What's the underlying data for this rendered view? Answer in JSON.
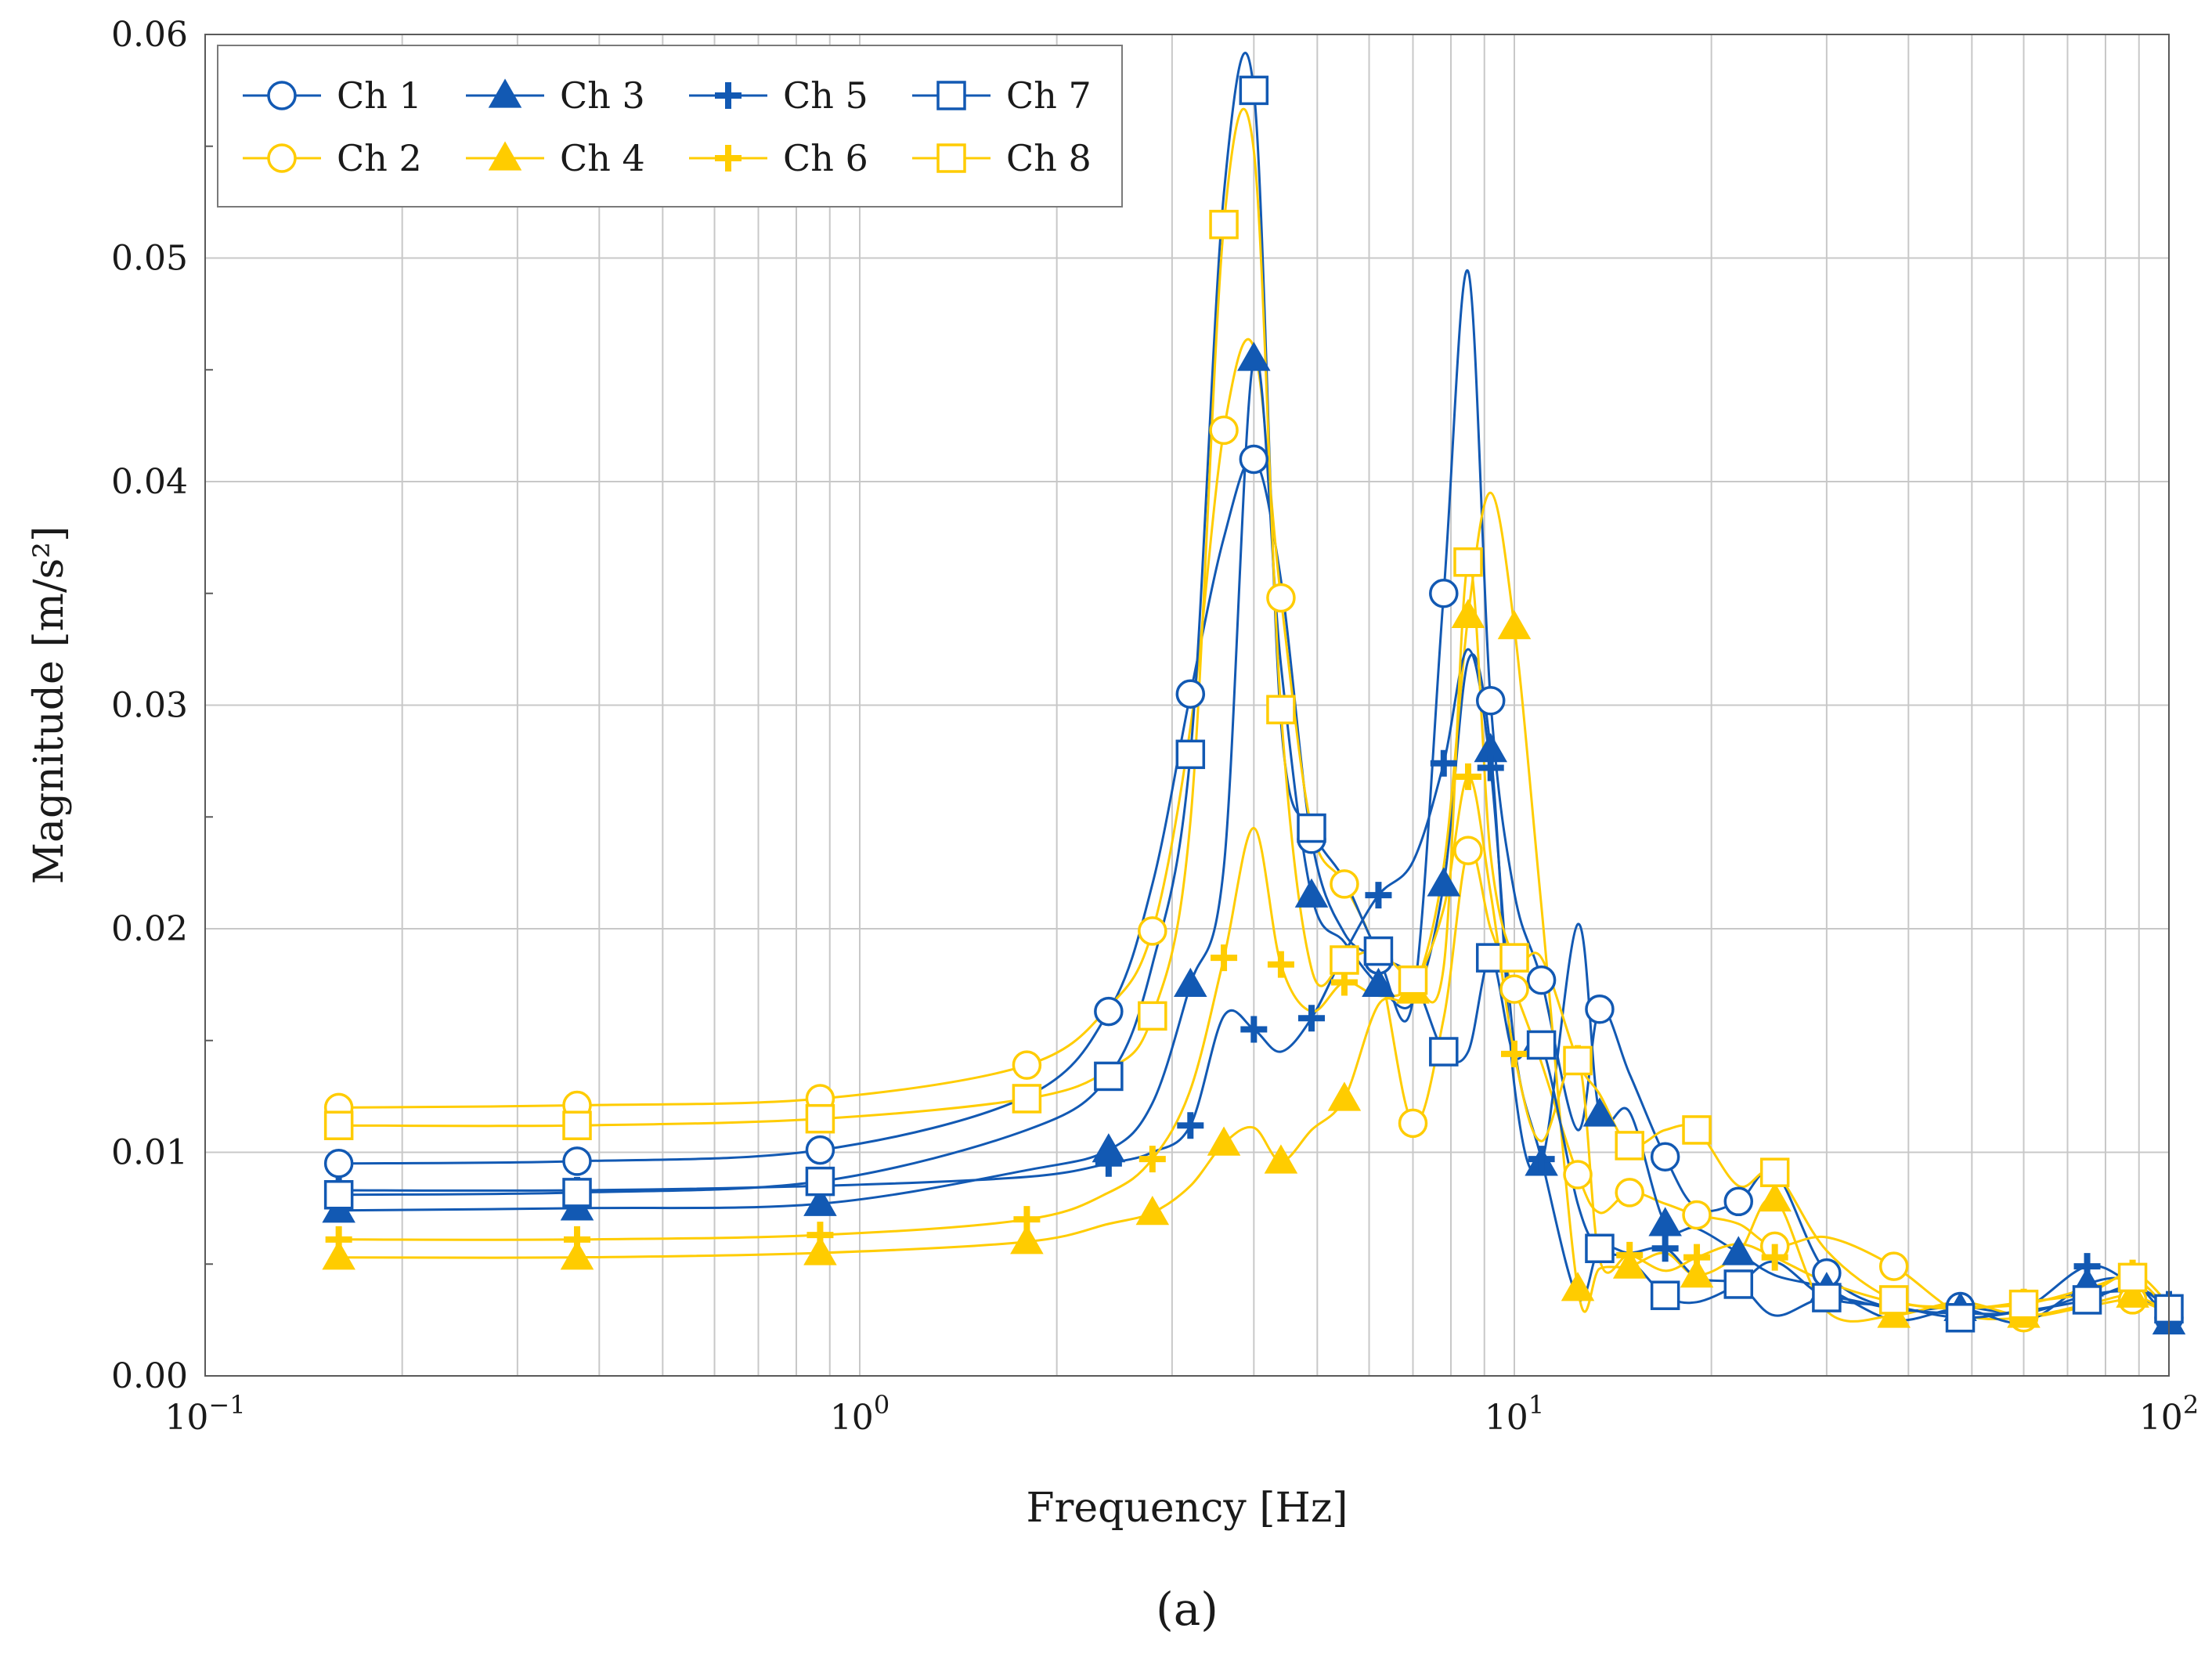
{
  "caption": "(a)",
  "colors": {
    "blue": "#1259B3",
    "yellow": "#FFCC00",
    "grid": "#C8C8C8"
  },
  "chart_data": {
    "type": "line",
    "title": "",
    "xlabel": "Frequency  [Hz]",
    "ylabel": "Magnitude  [m/s²]",
    "xscale": "log",
    "xlim": [
      0.1,
      100
    ],
    "ylim": [
      0,
      0.06
    ],
    "grid": true,
    "legend_position": "top-left",
    "x_tick_labels": [
      {
        "base": "10",
        "exp": "−1"
      },
      {
        "base": "10",
        "exp": "0"
      },
      {
        "base": "10",
        "exp": "1"
      },
      {
        "base": "10",
        "exp": "2"
      }
    ],
    "y_tick_labels": [
      "0.00",
      "0.01",
      "0.02",
      "0.03",
      "0.04",
      "0.05",
      "0.06"
    ],
    "y_ticks": [
      0,
      0.01,
      0.02,
      0.03,
      0.04,
      0.05,
      0.06
    ],
    "x": [
      0.16,
      0.37,
      0.87,
      1.8,
      2.4,
      2.8,
      3.2,
      3.6,
      4.0,
      4.4,
      4.9,
      5.5,
      6.2,
      7.0,
      7.8,
      8.5,
      9.2,
      10.0,
      11.0,
      12.5,
      13.5,
      15.0,
      17.0,
      19.0,
      22.0,
      25.0,
      30.0,
      38.0,
      48.0,
      60.0,
      75.0,
      88.0,
      100.0
    ],
    "series": [
      {
        "name": "Ch 1",
        "color": "blue",
        "marker": "circle",
        "values": [
          0.0095,
          0.0096,
          0.0101,
          0.0125,
          0.0163,
          0.022,
          0.0305,
          0.0375,
          0.041,
          0.0356,
          0.024,
          0.0198,
          0.0186,
          0.0168,
          0.035,
          0.0494,
          0.0302,
          0.0216,
          0.0177,
          0.011,
          0.0164,
          0.0135,
          0.0098,
          0.0075,
          0.0078,
          0.0091,
          0.0046,
          0.003,
          0.0031,
          0.0028,
          0.0036,
          0.0037,
          0.0026
        ]
      },
      {
        "name": "Ch 2",
        "color": "yellow",
        "marker": "circle",
        "values": [
          0.012,
          0.0121,
          0.0124,
          0.0139,
          0.0165,
          0.0199,
          0.029,
          0.0423,
          0.046,
          0.0348,
          0.0245,
          0.022,
          0.0185,
          0.0113,
          0.016,
          0.0235,
          0.02,
          0.0173,
          0.014,
          0.009,
          0.0073,
          0.0082,
          0.0077,
          0.0072,
          0.0068,
          0.0058,
          0.0062,
          0.0049,
          0.0028,
          0.0026,
          0.0031,
          0.0034,
          0.0028
        ]
      },
      {
        "name": "Ch 3",
        "color": "blue",
        "marker": "triangle",
        "values": [
          0.0074,
          0.0075,
          0.0077,
          0.0092,
          0.0101,
          0.0122,
          0.0175,
          0.0228,
          0.0455,
          0.0318,
          0.0215,
          0.0194,
          0.0175,
          0.0167,
          0.022,
          0.032,
          0.028,
          0.013,
          0.0095,
          0.0202,
          0.0117,
          0.0118,
          0.0068,
          0.0066,
          0.0055,
          0.0045,
          0.0039,
          0.0025,
          0.003,
          0.0024,
          0.0041,
          0.0042,
          0.0024
        ]
      },
      {
        "name": "Ch 4",
        "color": "yellow",
        "marker": "triangle",
        "values": [
          0.0053,
          0.0053,
          0.0055,
          0.006,
          0.0068,
          0.0073,
          0.0085,
          0.0104,
          0.0111,
          0.0096,
          0.011,
          0.0124,
          0.0166,
          0.0172,
          0.0228,
          0.034,
          0.0395,
          0.0335,
          0.021,
          0.0039,
          0.0048,
          0.0049,
          0.0055,
          0.0045,
          0.0055,
          0.0079,
          0.0029,
          0.0027,
          0.0033,
          0.0027,
          0.0032,
          0.0036,
          0.0028
        ]
      },
      {
        "name": "Ch 5",
        "color": "blue",
        "marker": "plus",
        "values": [
          0.0083,
          0.0083,
          0.0085,
          0.0089,
          0.0095,
          0.01,
          0.0112,
          0.0161,
          0.0155,
          0.0145,
          0.016,
          0.0189,
          0.0215,
          0.023,
          0.0274,
          0.0325,
          0.0272,
          0.0148,
          0.0097,
          0.0035,
          0.0057,
          0.0055,
          0.0057,
          0.0044,
          0.0041,
          0.0027,
          0.0035,
          0.003,
          0.0028,
          0.003,
          0.0049,
          0.0041,
          0.0032
        ]
      },
      {
        "name": "Ch 6",
        "color": "yellow",
        "marker": "plus",
        "values": [
          0.0061,
          0.0061,
          0.0063,
          0.007,
          0.0082,
          0.0097,
          0.0128,
          0.0187,
          0.0245,
          0.0184,
          0.0163,
          0.0176,
          0.017,
          0.0175,
          0.0209,
          0.0268,
          0.0216,
          0.0144,
          0.0105,
          0.0142,
          0.0052,
          0.0054,
          0.0047,
          0.0053,
          0.0059,
          0.0053,
          0.0042,
          0.0033,
          0.003,
          0.0033,
          0.0037,
          0.0046,
          0.0032
        ]
      },
      {
        "name": "Ch 7",
        "color": "blue",
        "marker": "square",
        "values": [
          0.0081,
          0.0082,
          0.0087,
          0.011,
          0.0134,
          0.0184,
          0.0278,
          0.0529,
          0.0575,
          0.0293,
          0.0245,
          0.0222,
          0.019,
          0.0178,
          0.0145,
          0.0145,
          0.0187,
          0.0143,
          0.0148,
          0.0077,
          0.0057,
          0.0052,
          0.0036,
          0.0033,
          0.0041,
          0.0051,
          0.0035,
          0.0031,
          0.0026,
          0.0029,
          0.0034,
          0.004,
          0.003
        ]
      },
      {
        "name": "Ch 8",
        "color": "yellow",
        "marker": "square",
        "values": [
          0.0112,
          0.0112,
          0.0115,
          0.0124,
          0.0137,
          0.0161,
          0.0248,
          0.0515,
          0.0548,
          0.0298,
          0.0182,
          0.0186,
          0.019,
          0.0177,
          0.0183,
          0.0364,
          0.0233,
          0.0187,
          0.0187,
          0.0141,
          0.0126,
          0.0103,
          0.011,
          0.011,
          0.0085,
          0.0091,
          0.0056,
          0.0034,
          0.0031,
          0.0032,
          0.0039,
          0.0044,
          0.0029
        ]
      }
    ]
  }
}
